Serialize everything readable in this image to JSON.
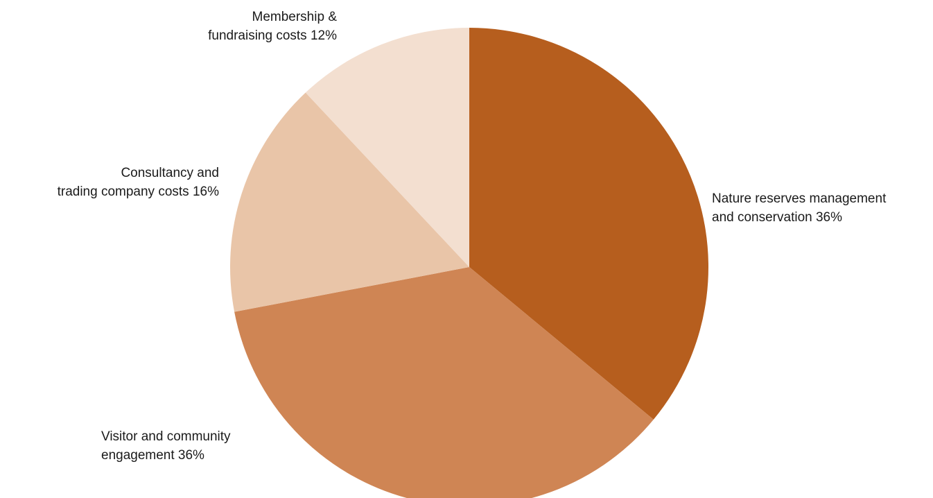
{
  "chart_data": {
    "type": "pie",
    "slices": [
      {
        "lines": [
          "Nature reserves management",
          "and conservation 36%"
        ],
        "value": 36,
        "color": "#b65e1e"
      },
      {
        "lines": [
          "Visitor and community",
          "engagement 36%"
        ],
        "value": 36,
        "color": "#cf8554"
      },
      {
        "lines": [
          "Consultancy and",
          "trading company costs 16%"
        ],
        "value": 16,
        "color": "#e9c5a8"
      },
      {
        "lines": [
          "Membership &",
          "fundraising costs 12%"
        ],
        "value": 12,
        "color": "#f3dfd0"
      }
    ],
    "start": "12 o'clock",
    "direction": "clockwise",
    "legend": "none"
  }
}
